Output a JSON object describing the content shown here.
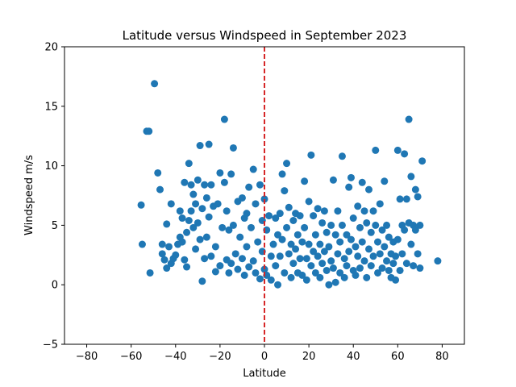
{
  "chart_data": {
    "type": "scatter",
    "title": "Latitude versus Windspeed in September 2023",
    "xlabel": "Latitude",
    "ylabel": "Windspeed m/s",
    "xlim": [
      -90,
      90
    ],
    "ylim": [
      -5,
      20
    ],
    "xticks": [
      -80,
      -60,
      -40,
      -20,
      0,
      20,
      40,
      60,
      80
    ],
    "yticks": [
      -5,
      0,
      5,
      10,
      15,
      20
    ],
    "grid": false,
    "marker_color": "#1f77b4",
    "reference_line": {
      "x": 0,
      "color": "#d62728",
      "style": "dashed"
    },
    "series": [
      {
        "points": [
          [
            -55.5,
            6.7
          ],
          [
            -55,
            3.4
          ],
          [
            -53,
            12.9
          ],
          [
            -52,
            12.9
          ],
          [
            -51.5,
            1.0
          ],
          [
            -49.5,
            16.9
          ],
          [
            -48,
            9.4
          ],
          [
            -47,
            8.0
          ],
          [
            -46,
            2.6
          ],
          [
            -46,
            3.4
          ],
          [
            -45,
            2.1
          ],
          [
            -44,
            5.1
          ],
          [
            -44,
            1.4
          ],
          [
            -43,
            3.2
          ],
          [
            -42,
            6.8
          ],
          [
            -42,
            1.8
          ],
          [
            -41,
            2.2
          ],
          [
            -40,
            2.5
          ],
          [
            -39,
            3.4
          ],
          [
            -38,
            6.2
          ],
          [
            -38,
            4.0
          ],
          [
            -37,
            5.6
          ],
          [
            -37,
            3.6
          ],
          [
            -36,
            8.6
          ],
          [
            -36,
            2.1
          ],
          [
            -35,
            4.4
          ],
          [
            -35,
            1.5
          ],
          [
            -34,
            10.2
          ],
          [
            -34,
            5.4
          ],
          [
            -33,
            8.4
          ],
          [
            -33,
            6.2
          ],
          [
            -32,
            7.6
          ],
          [
            -32,
            4.8
          ],
          [
            -31,
            6.8
          ],
          [
            -31,
            3.0
          ],
          [
            -30,
            8.8
          ],
          [
            -30,
            5.2
          ],
          [
            -29,
            11.7
          ],
          [
            -29,
            3.8
          ],
          [
            -28,
            0.3
          ],
          [
            -28,
            6.4
          ],
          [
            -27,
            8.4
          ],
          [
            -27,
            2.2
          ],
          [
            -26,
            7.3
          ],
          [
            -26,
            4.0
          ],
          [
            -25,
            11.8
          ],
          [
            -25,
            5.7
          ],
          [
            -24,
            8.4
          ],
          [
            -24,
            2.4
          ],
          [
            -23,
            6.6
          ],
          [
            -22,
            1.1
          ],
          [
            -22,
            3.2
          ],
          [
            -21,
            6.8
          ],
          [
            -20,
            9.4
          ],
          [
            -20,
            1.6
          ],
          [
            -19,
            4.8
          ],
          [
            -18,
            13.9
          ],
          [
            -18,
            8.6
          ],
          [
            -17,
            6.2
          ],
          [
            -17,
            2.1
          ],
          [
            -16,
            1.0
          ],
          [
            -16,
            4.6
          ],
          [
            -15,
            9.3
          ],
          [
            -15,
            1.8
          ],
          [
            -14,
            11.5
          ],
          [
            -14,
            5.0
          ],
          [
            -13,
            2.6
          ],
          [
            -12,
            7.0
          ],
          [
            -12,
            1.3
          ],
          [
            -11,
            4.0
          ],
          [
            -10,
            7.3
          ],
          [
            -10,
            2.2
          ],
          [
            -9,
            5.6
          ],
          [
            -9,
            0.8
          ],
          [
            -8,
            6.0
          ],
          [
            -8,
            3.2
          ],
          [
            -7,
            8.2
          ],
          [
            -7,
            1.5
          ],
          [
            -6,
            4.8
          ],
          [
            -5,
            9.7
          ],
          [
            -5,
            2.0
          ],
          [
            -4,
            6.8
          ],
          [
            -4,
            1.0
          ],
          [
            -3,
            3.6
          ],
          [
            -2,
            8.4
          ],
          [
            -2,
            0.5
          ],
          [
            -1,
            5.4
          ],
          [
            -1,
            2.8
          ],
          [
            0,
            7.2
          ],
          [
            0,
            1.3
          ],
          [
            1,
            4.6
          ],
          [
            1,
            0.8
          ],
          [
            2,
            5.8
          ],
          [
            3,
            2.4
          ],
          [
            3,
            0.4
          ],
          [
            4,
            3.4
          ],
          [
            5,
            5.6
          ],
          [
            5,
            1.6
          ],
          [
            6,
            4.2
          ],
          [
            6,
            0.0
          ],
          [
            7,
            6.0
          ],
          [
            7,
            2.4
          ],
          [
            8,
            9.3
          ],
          [
            8,
            3.8
          ],
          [
            9,
            7.9
          ],
          [
            9,
            1.0
          ],
          [
            10,
            10.2
          ],
          [
            10,
            4.8
          ],
          [
            11,
            6.5
          ],
          [
            11,
            2.6
          ],
          [
            12,
            3.4
          ],
          [
            12,
            0.6
          ],
          [
            13,
            5.4
          ],
          [
            13,
            1.8
          ],
          [
            14,
            6.0
          ],
          [
            14,
            3.0
          ],
          [
            15,
            4.2
          ],
          [
            15,
            1.0
          ],
          [
            16,
            5.8
          ],
          [
            16,
            2.2
          ],
          [
            17,
            3.6
          ],
          [
            17,
            0.8
          ],
          [
            18,
            8.7
          ],
          [
            18,
            4.8
          ],
          [
            19,
            2.2
          ],
          [
            19,
            0.4
          ],
          [
            20,
            7.0
          ],
          [
            20,
            3.4
          ],
          [
            21,
            10.9
          ],
          [
            21,
            1.6
          ],
          [
            22,
            5.8
          ],
          [
            22,
            2.8
          ],
          [
            23,
            4.2
          ],
          [
            23,
            1.0
          ],
          [
            24,
            6.4
          ],
          [
            24,
            2.4
          ],
          [
            25,
            3.4
          ],
          [
            25,
            0.6
          ],
          [
            26,
            5.2
          ],
          [
            26,
            1.8
          ],
          [
            27,
            6.2
          ],
          [
            27,
            2.8
          ],
          [
            28,
            4.4
          ],
          [
            28,
            1.2
          ],
          [
            29,
            3.2
          ],
          [
            29,
            0.0
          ],
          [
            30,
            5.0
          ],
          [
            30,
            2.0
          ],
          [
            31,
            8.8
          ],
          [
            31,
            1.4
          ],
          [
            32,
            4.2
          ],
          [
            32,
            0.2
          ],
          [
            33,
            6.2
          ],
          [
            33,
            2.6
          ],
          [
            34,
            3.6
          ],
          [
            34,
            1.0
          ],
          [
            35,
            10.8
          ],
          [
            35,
            5.0
          ],
          [
            36,
            2.2
          ],
          [
            36,
            0.6
          ],
          [
            37,
            4.2
          ],
          [
            37,
            1.6
          ],
          [
            38,
            8.2
          ],
          [
            38,
            2.8
          ],
          [
            39,
            9.0
          ],
          [
            39,
            3.8
          ],
          [
            40,
            5.6
          ],
          [
            40,
            1.2
          ],
          [
            41,
            3.2
          ],
          [
            41,
            0.8
          ],
          [
            42,
            6.6
          ],
          [
            42,
            2.4
          ],
          [
            43,
            4.8
          ],
          [
            43,
            1.4
          ],
          [
            44,
            8.6
          ],
          [
            44,
            3.6
          ],
          [
            45,
            6.2
          ],
          [
            45,
            2.0
          ],
          [
            46,
            5.2
          ],
          [
            46,
            0.6
          ],
          [
            47,
            8.0
          ],
          [
            47,
            3.0
          ],
          [
            48,
            4.4
          ],
          [
            48,
            1.6
          ],
          [
            49,
            6.2
          ],
          [
            49,
            2.4
          ],
          [
            50,
            11.3
          ],
          [
            50,
            5.0
          ],
          [
            51,
            3.6
          ],
          [
            51,
            1.0
          ],
          [
            52,
            6.8
          ],
          [
            52,
            2.6
          ],
          [
            53,
            4.6
          ],
          [
            53,
            1.4
          ],
          [
            54,
            8.7
          ],
          [
            54,
            3.2
          ],
          [
            55,
            5.0
          ],
          [
            55,
            2.0
          ],
          [
            56,
            4.0
          ],
          [
            56,
            1.2
          ],
          [
            57,
            2.6
          ],
          [
            57,
            0.6
          ],
          [
            58,
            3.6
          ],
          [
            58,
            1.8
          ],
          [
            59,
            2.4
          ],
          [
            59,
            0.4
          ],
          [
            60,
            11.3
          ],
          [
            60,
            3.8
          ],
          [
            61,
            7.2
          ],
          [
            61,
            1.2
          ],
          [
            62,
            5.0
          ],
          [
            62,
            2.6
          ],
          [
            63,
            11.0
          ],
          [
            63,
            4.6
          ],
          [
            64,
            7.2
          ],
          [
            64,
            1.8
          ],
          [
            65,
            13.9
          ],
          [
            65,
            5.2
          ],
          [
            66,
            9.1
          ],
          [
            66,
            3.4
          ],
          [
            67,
            5.0
          ],
          [
            67,
            1.6
          ],
          [
            68,
            8.0
          ],
          [
            68,
            4.6
          ],
          [
            69,
            7.4
          ],
          [
            69,
            2.6
          ],
          [
            70,
            5.0
          ],
          [
            70,
            1.4
          ],
          [
            71,
            10.4
          ],
          [
            78,
            2.0
          ]
        ]
      }
    ]
  }
}
